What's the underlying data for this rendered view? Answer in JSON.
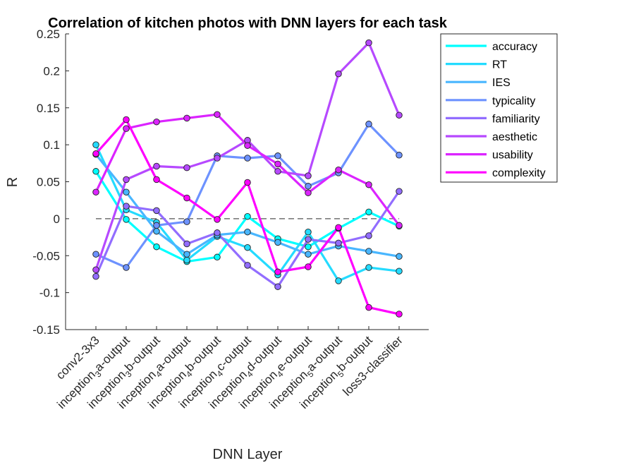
{
  "chart_data": {
    "type": "line",
    "title": "Correlation of kitchen photos with DNN layers for each task",
    "xlabel": "DNN Layer",
    "ylabel": "R",
    "ylim": [
      -0.15,
      0.25
    ],
    "yticks": [
      -0.15,
      -0.1,
      -0.05,
      0,
      0.05,
      0.1,
      0.15,
      0.2,
      0.25
    ],
    "ytick_labels": [
      "-0.15",
      "-0.1",
      "-0.05",
      "0",
      "0.05",
      "0.1",
      "0.15",
      "0.2",
      "0.25"
    ],
    "categories": [
      {
        "base": "conv2-3x3",
        "sub": "",
        "rest": ""
      },
      {
        "base": "inception",
        "sub": "3",
        "rest": "a-output"
      },
      {
        "base": "inception",
        "sub": "3",
        "rest": "b-output"
      },
      {
        "base": "inception",
        "sub": "4",
        "rest": "a-output"
      },
      {
        "base": "inception",
        "sub": "4",
        "rest": "b-output"
      },
      {
        "base": "inception",
        "sub": "4",
        "rest": "c-output"
      },
      {
        "base": "inception",
        "sub": "4",
        "rest": "d-output"
      },
      {
        "base": "inception",
        "sub": "4",
        "rest": "e-output"
      },
      {
        "base": "inception",
        "sub": "5",
        "rest": "a-output"
      },
      {
        "base": "inception",
        "sub": "5",
        "rest": "b-output"
      },
      {
        "base": "loss3-classifier",
        "sub": "",
        "rest": ""
      }
    ],
    "zero_line": true,
    "grid": false,
    "legend_position": "outside top-right",
    "series": [
      {
        "name": "accuracy",
        "color": "#00FFFF",
        "values": [
          0.064,
          -0.001,
          -0.038,
          -0.058,
          -0.052,
          0.003,
          -0.027,
          -0.038,
          -0.013,
          0.009,
          -0.01
        ]
      },
      {
        "name": "RT",
        "color": "#24DBFF",
        "values": [
          0.1,
          0.012,
          -0.005,
          -0.056,
          -0.024,
          -0.039,
          -0.076,
          -0.018,
          -0.084,
          -0.066,
          -0.071
        ]
      },
      {
        "name": "IES",
        "color": "#49B6FF",
        "values": [
          0.087,
          0.036,
          -0.017,
          -0.048,
          -0.022,
          -0.018,
          -0.032,
          -0.048,
          -0.037,
          -0.044,
          -0.051
        ]
      },
      {
        "name": "typicality",
        "color": "#6D92FF",
        "values": [
          -0.048,
          -0.066,
          -0.009,
          -0.004,
          0.085,
          0.082,
          0.085,
          0.044,
          0.062,
          0.128,
          0.086
        ]
      },
      {
        "name": "familiarity",
        "color": "#926DFF",
        "values": [
          -0.078,
          0.017,
          0.011,
          -0.034,
          -0.019,
          -0.063,
          -0.092,
          -0.028,
          -0.033,
          -0.023,
          0.037
        ]
      },
      {
        "name": "aesthetic",
        "color": "#B649FF",
        "values": [
          -0.069,
          0.053,
          0.071,
          0.069,
          0.082,
          0.106,
          0.064,
          0.058,
          0.196,
          0.238,
          0.14
        ]
      },
      {
        "name": "usability",
        "color": "#DB24FF",
        "values": [
          0.036,
          0.122,
          0.131,
          0.136,
          0.141,
          0.099,
          0.074,
          0.035,
          0.066,
          0.046,
          -0.009
        ]
      },
      {
        "name": "complexity",
        "color": "#FF00FF",
        "values": [
          0.088,
          0.134,
          0.053,
          0.028,
          -0.001,
          0.049,
          -0.072,
          -0.065,
          -0.012,
          -0.12,
          -0.129
        ]
      }
    ]
  }
}
